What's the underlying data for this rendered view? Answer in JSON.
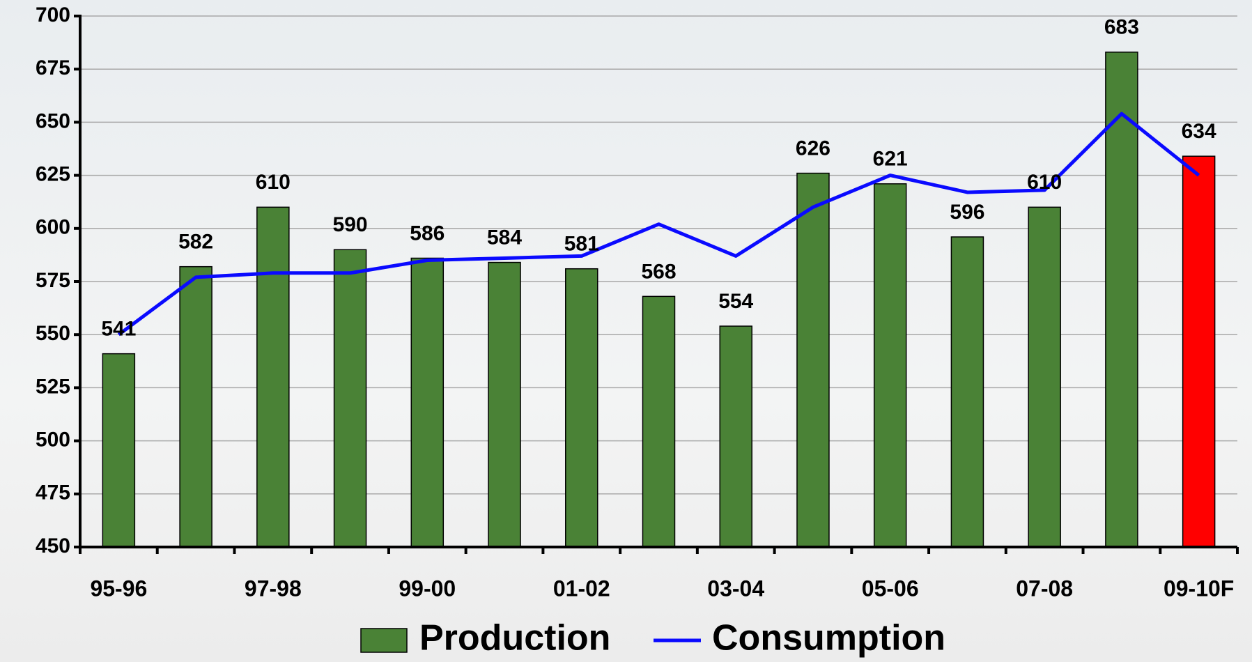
{
  "chart_data": {
    "type": "bar-line",
    "categories": [
      "95-96",
      null,
      "97-98",
      null,
      "99-00",
      null,
      "01-02",
      null,
      "03-04",
      null,
      "05-06",
      null,
      "07-08",
      null,
      "09-10F"
    ],
    "series": [
      {
        "name": "Production",
        "type": "bar",
        "color": "#4a8236",
        "colors": [
          "#4a8236",
          "#4a8236",
          "#4a8236",
          "#4a8236",
          "#4a8236",
          "#4a8236",
          "#4a8236",
          "#4a8236",
          "#4a8236",
          "#4a8236",
          "#4a8236",
          "#4a8236",
          "#4a8236",
          "#4a8236",
          "#ff0000"
        ],
        "values": [
          541,
          582,
          610,
          590,
          586,
          584,
          581,
          568,
          554,
          626,
          621,
          596,
          610,
          683,
          634
        ]
      },
      {
        "name": "Consumption",
        "type": "line",
        "color": "#0a0aff",
        "values": [
          550,
          577,
          579,
          579,
          585,
          586,
          587,
          602,
          587,
          610,
          625,
          617,
          618,
          654,
          625
        ]
      }
    ],
    "ylim": [
      450,
      700
    ],
    "yticks": [
      450,
      475,
      500,
      525,
      550,
      575,
      600,
      625,
      650,
      675,
      700
    ],
    "grid": true,
    "legend": "bottom"
  }
}
